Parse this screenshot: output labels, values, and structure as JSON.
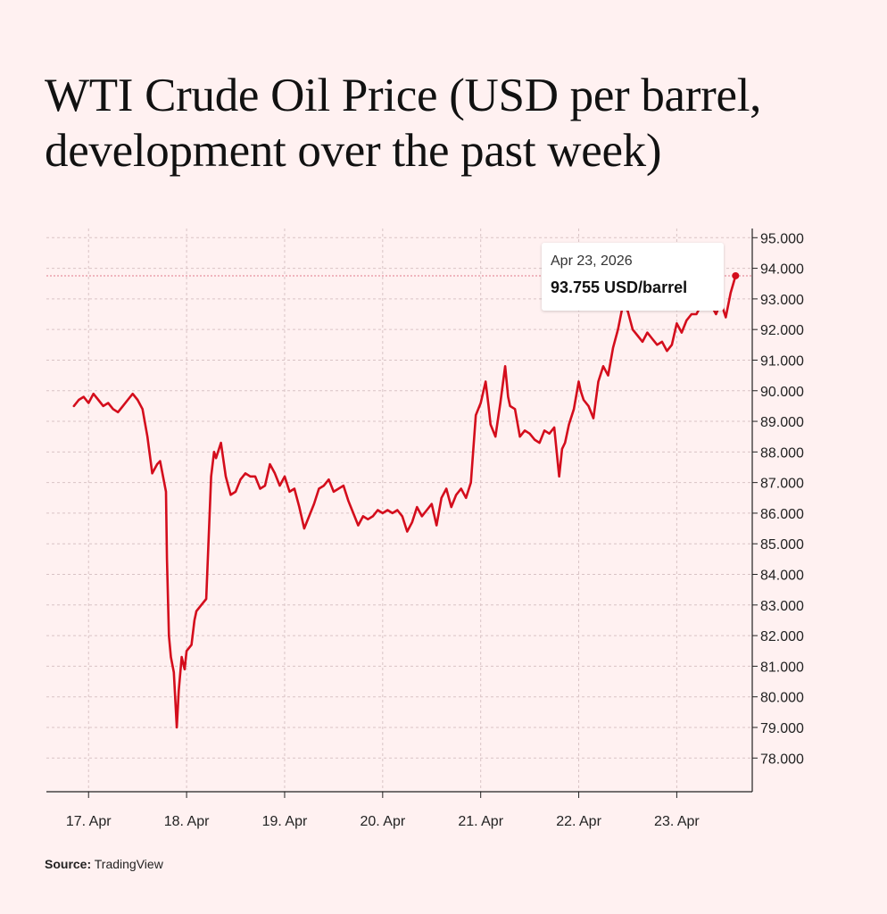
{
  "title": "WTI Crude Oil Price (USD per barrel, development over the past week)",
  "source": {
    "label": "Source:",
    "value": "TradingView"
  },
  "tooltip": {
    "date": "Apr 23, 2026",
    "value": "93.755 USD/barrel"
  },
  "chart_data": {
    "type": "line",
    "title": "WTI Crude Oil Price (USD per barrel, development over the past week)",
    "ylim": [
      76.9,
      95.3
    ],
    "y_ticks": [
      95,
      94,
      93,
      92,
      91,
      90,
      89,
      88,
      87,
      86,
      85,
      84,
      83,
      82,
      81,
      80,
      79,
      78
    ],
    "y_tick_labels": [
      "95.000",
      "94.000",
      "93.000",
      "92.000",
      "91.000",
      "90.000",
      "89.000",
      "88.000",
      "87.000",
      "86.000",
      "85.000",
      "84.000",
      "83.000",
      "82.000",
      "81.000",
      "80.000",
      "79.000",
      "78.000"
    ],
    "x_ticks": [
      17,
      18,
      19,
      20,
      21,
      22,
      23
    ],
    "x_tick_labels": [
      "17. Apr",
      "18. Apr",
      "19. Apr",
      "20. Apr",
      "21. Apr",
      "22. Apr",
      "23. Apr"
    ],
    "xlim": [
      16.57,
      23.77
    ],
    "grid": true,
    "reference_line": 93.755,
    "line_color": "#d40d1c",
    "series": [
      {
        "x": [
          16.85,
          16.9,
          16.95,
          17.0,
          17.05,
          17.1,
          17.15,
          17.2,
          17.25,
          17.3,
          17.35,
          17.4,
          17.45,
          17.5,
          17.55,
          17.6,
          17.65,
          17.7,
          17.73,
          17.76,
          17.79,
          17.8,
          17.82,
          17.84,
          17.87,
          17.9,
          17.92,
          17.95,
          17.98,
          18.0,
          18.05,
          18.08,
          18.1,
          18.15,
          18.2,
          18.25,
          18.28,
          18.3,
          18.35,
          18.4,
          18.45,
          18.5,
          18.55,
          18.6,
          18.65,
          18.7,
          18.75,
          18.8,
          18.85,
          18.9,
          18.95,
          19.0,
          19.05,
          19.1,
          19.15,
          19.2,
          19.25,
          19.3,
          19.35,
          19.4,
          19.45,
          19.5,
          19.55,
          19.6,
          19.65,
          19.7,
          19.75,
          19.8,
          19.85,
          19.9,
          19.95,
          20.0,
          20.05,
          20.1,
          20.15,
          20.2,
          20.25,
          20.3,
          20.35,
          20.4,
          20.45,
          20.5,
          20.55,
          20.6,
          20.65,
          20.7,
          20.75,
          20.8,
          20.85,
          20.9,
          20.95,
          21.0,
          21.05,
          21.08,
          21.1,
          21.15,
          21.2,
          21.25,
          21.28,
          21.3,
          21.35,
          21.4,
          21.45,
          21.5,
          21.55,
          21.6,
          21.65,
          21.7,
          21.75,
          21.8,
          21.83,
          21.86,
          21.9,
          21.95,
          22.0,
          22.02,
          22.05,
          22.1,
          22.15,
          22.2,
          22.25,
          22.3,
          22.35,
          22.4,
          22.45,
          22.5,
          22.55,
          22.6,
          22.65,
          22.7,
          22.75,
          22.8,
          22.85,
          22.9,
          22.95,
          23.0,
          23.05,
          23.1,
          23.15,
          23.2,
          23.25,
          23.3,
          23.35,
          23.4,
          23.45,
          23.5,
          23.55,
          23.6
        ],
        "y": [
          89.5,
          89.7,
          89.8,
          89.6,
          89.9,
          89.7,
          89.5,
          89.6,
          89.4,
          89.3,
          89.5,
          89.7,
          89.9,
          89.7,
          89.4,
          88.5,
          87.3,
          87.6,
          87.7,
          87.2,
          86.7,
          84.5,
          82.0,
          81.3,
          80.8,
          79.0,
          80.2,
          81.3,
          80.9,
          81.5,
          81.7,
          82.5,
          82.8,
          83.0,
          83.2,
          87.2,
          88.0,
          87.8,
          88.3,
          87.2,
          86.6,
          86.7,
          87.1,
          87.3,
          87.2,
          87.2,
          86.8,
          86.9,
          87.6,
          87.3,
          86.9,
          87.2,
          86.7,
          86.8,
          86.2,
          85.5,
          85.9,
          86.3,
          86.8,
          86.9,
          87.1,
          86.7,
          86.8,
          86.9,
          86.4,
          86.0,
          85.6,
          85.9,
          85.8,
          85.9,
          86.1,
          86.0,
          86.1,
          86.0,
          86.1,
          85.9,
          85.4,
          85.7,
          86.2,
          85.9,
          86.1,
          86.3,
          85.6,
          86.5,
          86.8,
          86.2,
          86.6,
          86.8,
          86.5,
          87.0,
          89.2,
          89.6,
          90.3,
          89.5,
          88.9,
          88.5,
          89.6,
          90.8,
          89.8,
          89.5,
          89.4,
          88.5,
          88.7,
          88.6,
          88.4,
          88.3,
          88.7,
          88.6,
          88.8,
          87.2,
          88.1,
          88.3,
          88.9,
          89.4,
          90.3,
          90.0,
          89.7,
          89.5,
          89.1,
          90.3,
          90.8,
          90.5,
          91.4,
          92.0,
          92.8,
          92.6,
          92.0,
          91.8,
          91.6,
          91.9,
          91.7,
          91.5,
          91.6,
          91.3,
          91.5,
          92.2,
          91.9,
          92.3,
          92.5,
          92.5,
          92.8,
          93.0,
          92.8,
          92.5,
          92.9,
          92.4,
          93.2,
          93.755
        ]
      }
    ]
  }
}
